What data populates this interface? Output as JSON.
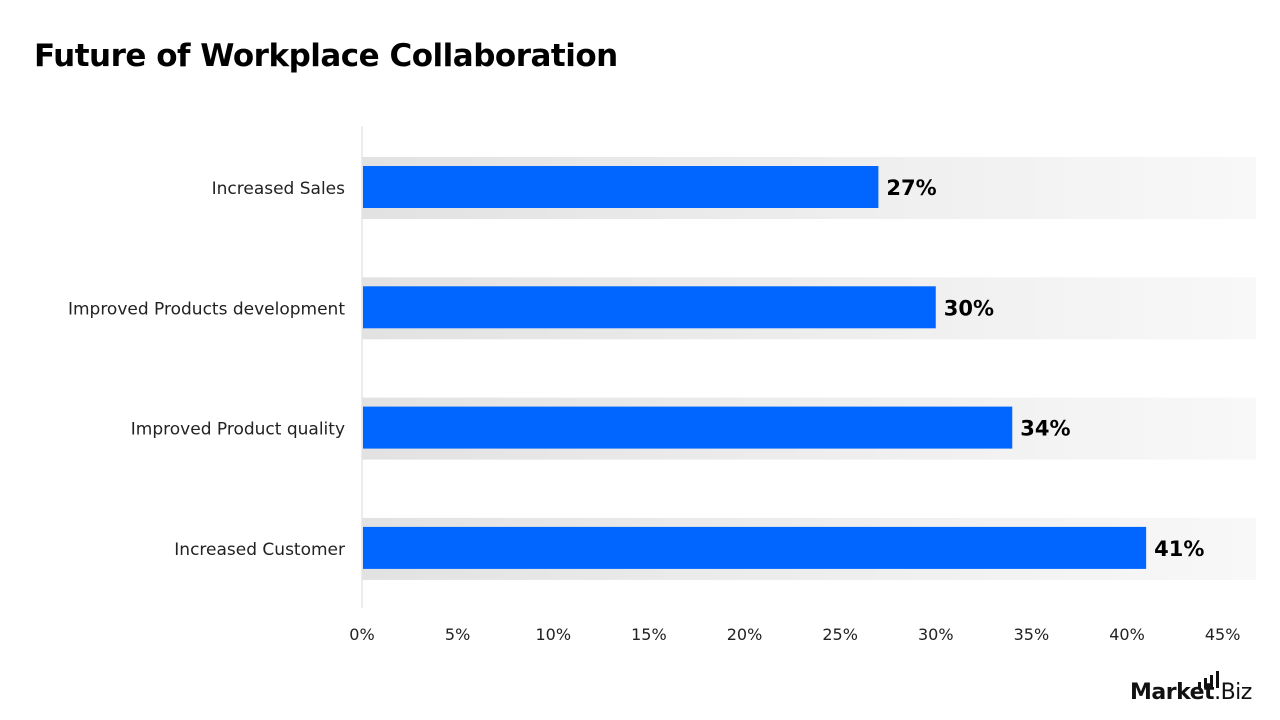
{
  "chart_data": {
    "type": "bar",
    "orientation": "horizontal",
    "title": "Future of Workplace Collaboration",
    "categories": [
      "Increased Sales",
      "Improved Products development",
      "Improved Product quality",
      "Increased Customer"
    ],
    "values": [
      27,
      30,
      34,
      41
    ],
    "data_labels": [
      "27%",
      "30%",
      "34%",
      "41%"
    ],
    "xlim": [
      0,
      45
    ],
    "x_ticks": [
      "0%",
      "5%",
      "10%",
      "15%",
      "20%",
      "25%",
      "30%",
      "35%",
      "40%",
      "45%"
    ],
    "xlabel": "",
    "ylabel": "",
    "grid": false,
    "colors": {
      "bar": "#0066FF",
      "band_start": "#E2E2E2",
      "band_end": "#F8F8F8",
      "text": "#000000"
    }
  },
  "logo": {
    "bold": "Market",
    "rest": ".Biz"
  }
}
